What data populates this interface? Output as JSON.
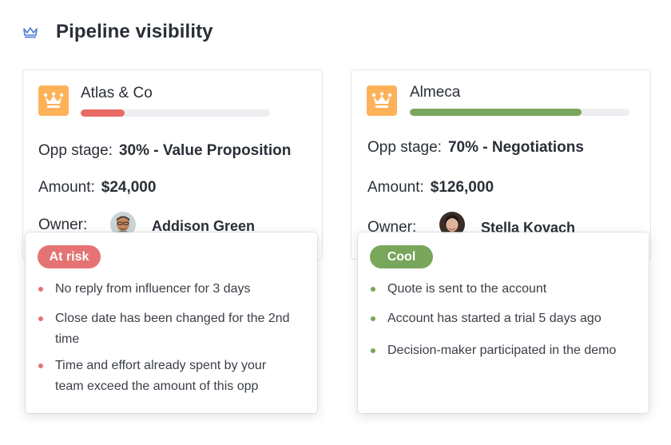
{
  "header": {
    "title": "Pipeline visibility",
    "icon": "crown-icon"
  },
  "colors": {
    "accent": "#4a7fd4",
    "logo_bg": "#fdb25a",
    "risk": "#e57373",
    "cool": "#78a65a",
    "track": "#eceef1"
  },
  "deals": [
    {
      "company": "Atlas & Co",
      "progress": 0.23,
      "bar_color": "#e96a64",
      "stage_label": "Opp stage:",
      "stage_value": "30% - Value Proposition",
      "amount_label": "Amount:",
      "amount_value": "$24,000",
      "owner_label": "Owner:",
      "owner_name": "Addison Green",
      "status": {
        "label": "At risk",
        "color": "#e57373",
        "items": [
          "No reply from influencer for 3 days",
          "Close date has been changed for the 2nd time",
          "Time and effort already spent by your team exceed the amount of this opp"
        ]
      }
    },
    {
      "company": "Almeca",
      "progress": 0.78,
      "bar_color": "#78a65a",
      "stage_label": "Opp stage:",
      "stage_value": "70% - Negotiations",
      "amount_label": "Amount:",
      "amount_value": "$126,000",
      "owner_label": "Owner:",
      "owner_name": "Stella Kovach",
      "status": {
        "label": "Cool",
        "color": "#78a65a",
        "items": [
          "Quote is sent to the account",
          "Account has started a trial 5 days ago",
          "Decision-maker participated in the demo"
        ]
      }
    }
  ]
}
